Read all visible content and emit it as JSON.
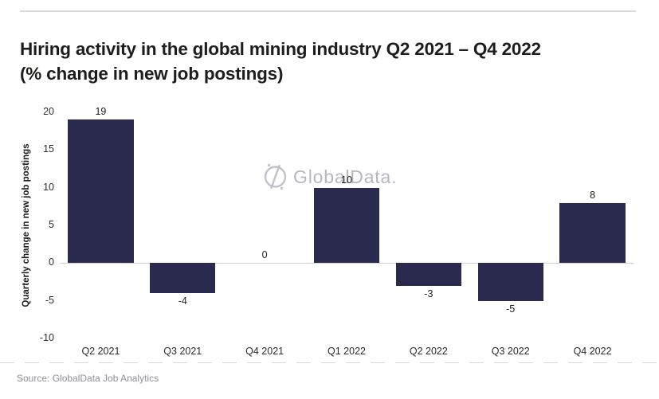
{
  "page": {
    "watermark_text": "GlobalData.",
    "source": "Source: GlobalData Job Analytics"
  },
  "colors": {
    "bar": "#2a2a4e",
    "title_text": "#1d1d1b",
    "axis_text": "#2b2b2b",
    "watermark": "#b7b7c4",
    "source_text": "#8f8f99",
    "divider": "#dcdcdc",
    "zero_line": "#cfcfcf"
  },
  "chart_data": {
    "type": "bar",
    "title": "Hiring activity in the global mining industry Q2 2021 – Q4 2022 (% change in new job postings)",
    "categories": [
      "Q2 2021",
      "Q3 2021",
      "Q4 2021",
      "Q1 2022",
      "Q2 2022",
      "Q3 2022",
      "Q4 2022"
    ],
    "values": [
      19,
      -4,
      0,
      10,
      -3,
      -5,
      8
    ],
    "xlabel": "",
    "ylabel": "Quarterly change in new job postings",
    "ylim": [
      -10,
      20
    ],
    "yticks": [
      20,
      15,
      10,
      5,
      0,
      -5,
      -10
    ],
    "grid": false,
    "legend_position": "none",
    "source": "Source: GlobalData Job Analytics"
  }
}
